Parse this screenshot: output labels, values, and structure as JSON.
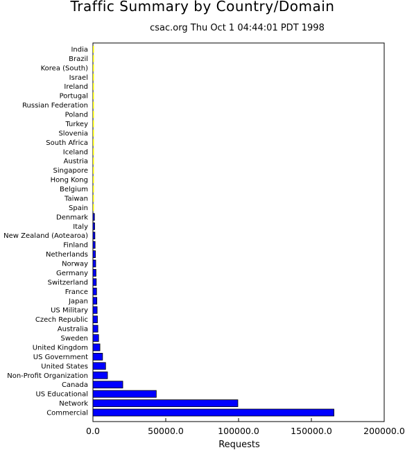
{
  "chart_data": {
    "type": "bar",
    "orientation": "horizontal",
    "title": "Traffic Summary by Country/Domain",
    "subtitle": "csac.org Thu Oct  1 04:44:01 PDT 1998",
    "xlabel": "Requests",
    "ylabel": "",
    "xlim": [
      0,
      200000
    ],
    "x_ticks": [
      "0.0",
      "50000.0",
      "100000.0",
      "150000.0",
      "200000.0"
    ],
    "grid": false,
    "colors": {
      "bar_fill": "#0000ff",
      "bar_edge": "#000000",
      "tiny_bar": "#ffff00"
    },
    "categories": [
      "India",
      "Brazil",
      "Korea (South)",
      "Israel",
      "Ireland",
      "Portugal",
      "Russian Federation",
      "Poland",
      "Turkey",
      "Slovenia",
      "South Africa",
      "Iceland",
      "Austria",
      "Singapore",
      "Hong Kong",
      "Belgium",
      "Taiwan",
      "Spain",
      "Denmark",
      "Italy",
      "New Zealand (Aotearoa)",
      "Finland",
      "Netherlands",
      "Norway",
      "Germany",
      "Switzerland",
      "France",
      "Japan",
      "US Military",
      "Czech Republic",
      "Australia",
      "Sweden",
      "United Kingdom",
      "US Government",
      "United States",
      "Non-Profit Organization",
      "Canada",
      "US Educational",
      "Network",
      "Commercial"
    ],
    "values": [
      30,
      40,
      60,
      80,
      100,
      150,
      200,
      250,
      300,
      350,
      400,
      450,
      500,
      550,
      650,
      750,
      850,
      950,
      1050,
      1200,
      1350,
      1500,
      1700,
      1900,
      2100,
      2300,
      2500,
      2700,
      2900,
      3100,
      3400,
      3900,
      4800,
      6600,
      8700,
      10000,
      20500,
      43500,
      99500,
      165500
    ]
  }
}
